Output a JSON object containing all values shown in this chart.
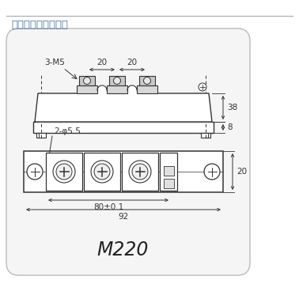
{
  "title": "模塊外型圖、安裝圖",
  "model": "M220",
  "bg_color": "#ffffff",
  "line_color": "#333333",
  "dim_color": "#333333",
  "title_color": "#4477aa",
  "top_view": {
    "label_3M5": "3-M5",
    "dim_20_1": "20",
    "dim_20_2": "20",
    "dim_38": "38",
    "dim_8": "8"
  },
  "bottom_view": {
    "label_phi": "2-φ5.5",
    "dim_80": "80±0.1",
    "dim_92": "92",
    "dim_20": "20"
  }
}
